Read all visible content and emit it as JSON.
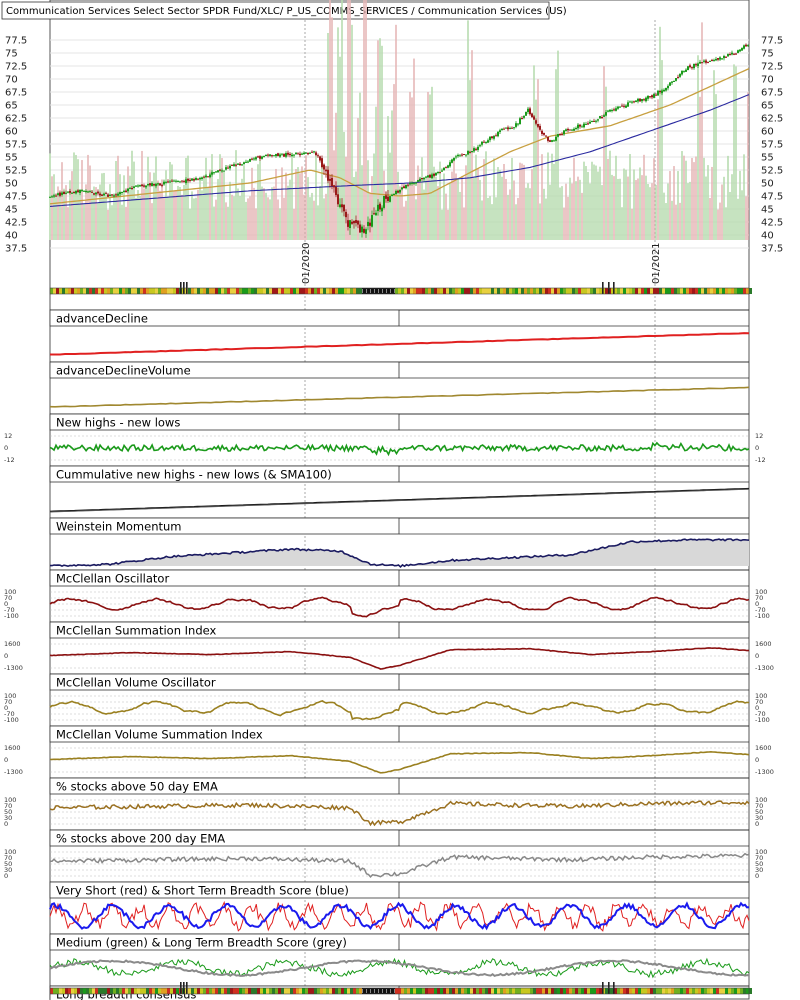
{
  "header": {
    "title": "Communication Services Select Sector SPDR Fund/XLC/ P_US_COMMS_SERVICES / Communication Services (US)"
  },
  "colors": {
    "up_candle": "#1a9a1a",
    "down_candle": "#9a1a1a",
    "sma_short": "#c8a040",
    "sma_long": "#2a2aa0",
    "volume_up": "#b8dcb0",
    "volume_down": "#e6b8b8",
    "breadth_red": "#e02020",
    "breadth_blue": "#1a1aee",
    "breadth_green": "#1a9a1a",
    "breadth_grey": "#8a8a8a"
  },
  "chart_data": [
    {
      "type": "candlestick",
      "title": "Communication Services Select Sector SPDR Fund/XLC/ P_US_COMMS_SERVICES / Communication Services (US)",
      "x_tick_labels": [
        "01/2020",
        "01/2021"
      ],
      "y_ticks": [
        37.5,
        40,
        42.5,
        45,
        47.5,
        50,
        52.5,
        55,
        57.5,
        60,
        62.5,
        65,
        67.5,
        70,
        72.5,
        75,
        77.5
      ],
      "ylim": [
        37.5,
        77.5
      ],
      "price_keypoints": [
        [
          0,
          47.5
        ],
        [
          30,
          48.5
        ],
        [
          60,
          47.5
        ],
        [
          90,
          49.5
        ],
        [
          120,
          50
        ],
        [
          150,
          51
        ],
        [
          180,
          53
        ],
        [
          210,
          55
        ],
        [
          240,
          55.5
        ],
        [
          265,
          56
        ],
        [
          275,
          53
        ],
        [
          290,
          45
        ],
        [
          300,
          42
        ],
        [
          315,
          41
        ],
        [
          330,
          46
        ],
        [
          345,
          48
        ],
        [
          360,
          50
        ],
        [
          375,
          51
        ],
        [
          390,
          52
        ],
        [
          405,
          55
        ],
        [
          420,
          56
        ],
        [
          435,
          58
        ],
        [
          450,
          60
        ],
        [
          465,
          61
        ],
        [
          478,
          64
        ],
        [
          490,
          60
        ],
        [
          500,
          58
        ],
        [
          515,
          60
        ],
        [
          530,
          61
        ],
        [
          545,
          62
        ],
        [
          560,
          64
        ],
        [
          575,
          65
        ],
        [
          590,
          66
        ],
        [
          605,
          67
        ],
        [
          620,
          69
        ],
        [
          635,
          72
        ],
        [
          650,
          73
        ],
        [
          670,
          74
        ],
        [
          685,
          75
        ],
        [
          699,
          77
        ]
      ],
      "sma_short_keypoints": [
        [
          0,
          46
        ],
        [
          100,
          48
        ],
        [
          200,
          50
        ],
        [
          260,
          52.5
        ],
        [
          290,
          51
        ],
        [
          320,
          48
        ],
        [
          350,
          47.5
        ],
        [
          380,
          48
        ],
        [
          420,
          52
        ],
        [
          460,
          56
        ],
        [
          500,
          59
        ],
        [
          560,
          61
        ],
        [
          620,
          65
        ],
        [
          699,
          72
        ]
      ],
      "sma_long_keypoints": [
        [
          0,
          45.5
        ],
        [
          100,
          47
        ],
        [
          200,
          48.5
        ],
        [
          300,
          49.5
        ],
        [
          360,
          50
        ],
        [
          420,
          51
        ],
        [
          480,
          53
        ],
        [
          540,
          56
        ],
        [
          600,
          60
        ],
        [
          660,
          64
        ],
        [
          699,
          67
        ]
      ],
      "volume_spike_positions": [
        280,
        290,
        300,
        315,
        330,
        345,
        362,
        380,
        420,
        486,
        507,
        555,
        610,
        650,
        665,
        685,
        699
      ],
      "hit_markers_top": [
        130,
        133,
        136,
        552,
        558,
        563
      ],
      "black_band_top": [
        312,
        345
      ]
    },
    {
      "type": "line",
      "title": "advanceDecline",
      "series": [
        {
          "color": "#e02020",
          "trend": "rising"
        }
      ]
    },
    {
      "type": "line",
      "title": "advanceDeclineVolume",
      "series": [
        {
          "color": "#a08830",
          "trend": "rising"
        }
      ]
    },
    {
      "type": "line",
      "title": "New highs - new lows",
      "y_ticks": [
        "12",
        "0",
        "-12"
      ],
      "series": [
        {
          "color": "#1a9a1a"
        }
      ]
    },
    {
      "type": "line",
      "title": "Cummulative new highs - new lows (& SMA100)",
      "series": [
        {
          "color": "#222222"
        }
      ]
    },
    {
      "type": "area",
      "title": "Weinstein Momentum",
      "series": [
        {
          "color": "#1a1a60"
        }
      ]
    },
    {
      "type": "line",
      "title": "McClellan Oscillator",
      "y_ticks": [
        "100",
        "70",
        "0",
        "-70",
        "-100"
      ],
      "series": [
        {
          "color": "#8a1010"
        }
      ]
    },
    {
      "type": "line",
      "title": "McClellan Summation Index",
      "y_ticks": [
        "1600",
        "0",
        "-1300"
      ],
      "series": [
        {
          "color": "#8a1010"
        }
      ]
    },
    {
      "type": "line",
      "title": "McClellan Volume Oscillator",
      "y_ticks": [
        "100",
        "70",
        "0",
        "-70",
        "-100"
      ],
      "series": [
        {
          "color": "#9a8020"
        }
      ]
    },
    {
      "type": "line",
      "title": "McClellan Volume Summation Index",
      "y_ticks": [
        "1600",
        "0",
        "-1300"
      ],
      "series": [
        {
          "color": "#9a8020"
        }
      ]
    },
    {
      "type": "line",
      "title": "% stocks above 50 day EMA",
      "y_ticks": [
        "100",
        "70",
        "50",
        "30",
        "0"
      ],
      "series": [
        {
          "color": "#9a7020"
        }
      ]
    },
    {
      "type": "line",
      "title": "% stocks above 200 day EMA",
      "y_ticks": [
        "100",
        "70",
        "50",
        "30",
        "0"
      ],
      "series": [
        {
          "color": "#888888"
        }
      ]
    },
    {
      "type": "line",
      "title": "Very Short (red) & Short Term Breadth Score (blue)",
      "series": [
        {
          "color": "#e02020"
        },
        {
          "color": "#1a1aee"
        }
      ]
    },
    {
      "type": "line",
      "title": "Medium (green) & Long Term Breadth Score (grey)",
      "series": [
        {
          "color": "#1a9a1a"
        },
        {
          "color": "#8a8a8a"
        }
      ]
    },
    {
      "type": "heatmap",
      "title": "Long breadth consensus"
    }
  ],
  "panels": [
    {
      "title": "advanceDecline"
    },
    {
      "title": "advanceDeclineVolume"
    },
    {
      "title": "New highs - new lows",
      "ticks": [
        "12",
        "0",
        "-12"
      ]
    },
    {
      "title": "Cummulative new highs - new lows (& SMA100)"
    },
    {
      "title": "Weinstein Momentum"
    },
    {
      "title": "McClellan Oscillator",
      "ticks": [
        "100",
        "70",
        "0",
        "-70",
        "-100"
      ]
    },
    {
      "title": "McClellan Summation Index",
      "ticks": [
        "1600",
        "0",
        "-1300"
      ]
    },
    {
      "title": "McClellan Volume Oscillator",
      "ticks": [
        "100",
        "70",
        "0",
        "-70",
        "-100"
      ]
    },
    {
      "title": "McClellan Volume Summation Index",
      "ticks": [
        "1600",
        "0",
        "-1300"
      ]
    },
    {
      "title": "% stocks above 50 day EMA",
      "ticks": [
        "100",
        "70",
        "50",
        "30",
        "0"
      ]
    },
    {
      "title": "% stocks above 200 day EMA",
      "ticks": [
        "100",
        "70",
        "50",
        "30",
        "0"
      ]
    },
    {
      "title": "Very Short (red) & Short Term Breadth Score (blue)"
    },
    {
      "title": "Medium (green) & Long Term Breadth Score (grey)"
    },
    {
      "title": "Long breadth consensus"
    }
  ]
}
